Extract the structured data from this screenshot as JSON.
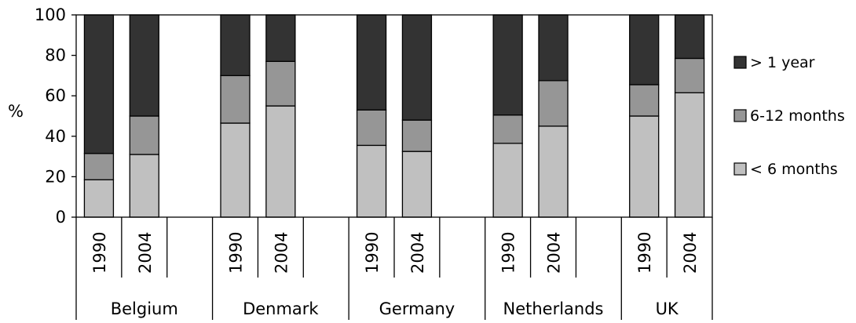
{
  "chart_data": {
    "type": "bar",
    "stacked": true,
    "percent": true,
    "groups": [
      {
        "name": "Belgium",
        "years": [
          "1990",
          "2004"
        ]
      },
      {
        "name": "Denmark",
        "years": [
          "1990",
          "2004"
        ]
      },
      {
        "name": "Germany",
        "years": [
          "1990",
          "2004"
        ]
      },
      {
        "name": "Netherlands",
        "years": [
          "1990",
          "2004"
        ]
      },
      {
        "name": "UK",
        "years": [
          "1990",
          "2004"
        ]
      }
    ],
    "series": [
      {
        "name": "< 6 months",
        "color": "#c0c0c0",
        "values": [
          18.5,
          31,
          46.5,
          55,
          35.5,
          32.5,
          36.5,
          45,
          50,
          61.5
        ]
      },
      {
        "name": "6-12 months",
        "color": "#969696",
        "values": [
          13,
          19,
          23.5,
          22,
          17.5,
          15.5,
          14,
          22.5,
          15.5,
          17
        ]
      },
      {
        "name": "> 1 year",
        "color": "#333333",
        "values": [
          68.5,
          50,
          30,
          23,
          47,
          52,
          49.5,
          32.5,
          34.5,
          21.5
        ]
      }
    ],
    "legend_order": [
      "> 1 year",
      "6-12 months",
      "< 6 months"
    ],
    "legend_position": "right",
    "ylabel": "%",
    "xlabel": "",
    "ylim": [
      0,
      100
    ],
    "yticks": [
      0,
      20,
      40,
      60,
      80,
      100
    ],
    "grid": false
  }
}
